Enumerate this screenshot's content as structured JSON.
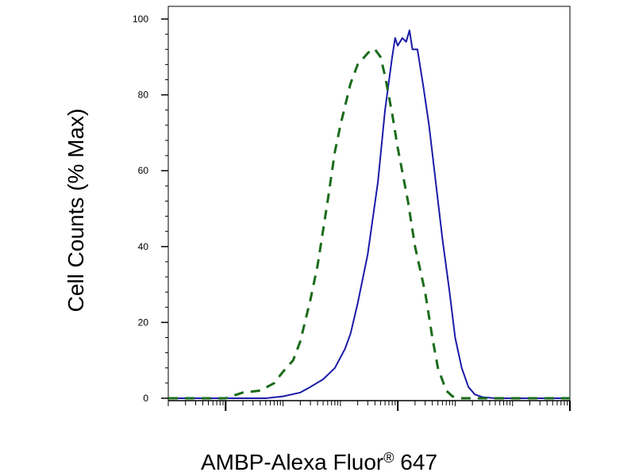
{
  "chart_data": {
    "type": "line",
    "title": "",
    "xlabel": "AMBP-Alexa Fluor",
    "xlabel_superscript": "®",
    "xlabel_suffix": " 647",
    "ylabel": "Cell Counts (% Max)",
    "xscale": "log",
    "xlim": [
      0.1,
      1000000
    ],
    "ylim": [
      0,
      100
    ],
    "yticks": [
      "0",
      "20",
      "40",
      "60",
      "80",
      "100"
    ],
    "grid": false,
    "legend": "none",
    "series": [
      {
        "color": "#1a1aa8",
        "style": "solid",
        "points": [
          [
            0.1,
            0
          ],
          [
            5,
            0
          ],
          [
            10,
            0.5
          ],
          [
            20,
            1.5
          ],
          [
            30,
            3
          ],
          [
            50,
            5
          ],
          [
            80,
            8
          ],
          [
            120,
            13
          ],
          [
            150,
            17
          ],
          [
            200,
            25
          ],
          [
            300,
            38
          ],
          [
            450,
            57
          ],
          [
            600,
            76
          ],
          [
            800,
            90
          ],
          [
            900,
            95
          ],
          [
            1000,
            93
          ],
          [
            1200,
            95
          ],
          [
            1400,
            94
          ],
          [
            1600,
            97
          ],
          [
            1800,
            92
          ],
          [
            2200,
            92
          ],
          [
            2800,
            82
          ],
          [
            3500,
            72
          ],
          [
            4500,
            58
          ],
          [
            6000,
            42
          ],
          [
            8000,
            28
          ],
          [
            10000,
            16
          ],
          [
            13000,
            8
          ],
          [
            17000,
            3
          ],
          [
            22000,
            1
          ],
          [
            30000,
            0.3
          ],
          [
            50000,
            0
          ],
          [
            1000000,
            0
          ]
        ]
      },
      {
        "color": "#1a6b1a",
        "style": "dashed",
        "points": [
          [
            0.1,
            0
          ],
          [
            1,
            0
          ],
          [
            2,
            1.5
          ],
          [
            4,
            2
          ],
          [
            7,
            4
          ],
          [
            10,
            7
          ],
          [
            15,
            10
          ],
          [
            20,
            15
          ],
          [
            30,
            26
          ],
          [
            40,
            35
          ],
          [
            60,
            52
          ],
          [
            80,
            65
          ],
          [
            100,
            72
          ],
          [
            150,
            83
          ],
          [
            200,
            88
          ],
          [
            300,
            91
          ],
          [
            350,
            92
          ],
          [
            400,
            92
          ],
          [
            500,
            90
          ],
          [
            600,
            85
          ],
          [
            800,
            75
          ],
          [
            1000,
            66
          ],
          [
            1500,
            52
          ],
          [
            2000,
            40
          ],
          [
            3000,
            28
          ],
          [
            4000,
            16
          ],
          [
            5000,
            8
          ],
          [
            7000,
            2
          ],
          [
            9000,
            0.5
          ],
          [
            12000,
            0
          ],
          [
            1000000,
            0
          ]
        ]
      }
    ]
  }
}
